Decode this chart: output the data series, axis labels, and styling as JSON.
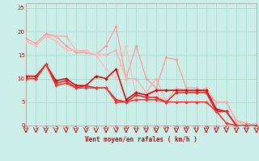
{
  "background_color": "#cceee8",
  "grid_color": "#aaddcc",
  "xlabel": "Vent moyen/en rafales ( km/h )",
  "xlim": [
    0,
    23
  ],
  "ylim": [
    0,
    26
  ],
  "xticks": [
    0,
    1,
    2,
    3,
    4,
    5,
    6,
    7,
    8,
    9,
    10,
    11,
    12,
    13,
    14,
    15,
    16,
    17,
    18,
    19,
    20,
    21,
    22,
    23
  ],
  "yticks": [
    0,
    5,
    10,
    15,
    20,
    25
  ],
  "lines": [
    {
      "x": [
        0,
        1,
        2,
        3,
        4,
        5,
        6,
        7,
        8,
        9,
        10,
        11,
        12,
        13,
        14,
        15,
        16,
        17,
        18,
        19,
        20,
        21,
        22,
        23
      ],
      "y": [
        18.5,
        17.5,
        19.5,
        19,
        17,
        15.5,
        15.5,
        15,
        17,
        21,
        10,
        17,
        10,
        8,
        14.5,
        14,
        8,
        8,
        7,
        5,
        5,
        1,
        0.5,
        0
      ],
      "color": "#ff9999",
      "lw": 0.9,
      "marker": "D",
      "markersize": 2.2
    },
    {
      "x": [
        0,
        1,
        2,
        3,
        4,
        5,
        6,
        7,
        8,
        9,
        10,
        11,
        12,
        13,
        14,
        15,
        16,
        17,
        18,
        19,
        20,
        21,
        22,
        23
      ],
      "y": [
        18,
        17,
        19,
        19,
        19,
        16,
        15.5,
        15,
        15,
        16,
        10,
        10,
        7,
        10,
        5,
        8,
        7.5,
        7,
        8,
        5,
        5,
        1,
        0,
        0.5
      ],
      "color": "#ffaaaa",
      "lw": 0.9,
      "marker": "D",
      "markersize": 2.2
    },
    {
      "x": [
        0,
        1,
        2,
        3,
        4,
        5,
        6,
        7,
        8,
        9,
        10,
        11,
        12,
        13,
        14,
        15,
        16,
        17,
        18,
        19,
        20,
        21,
        22,
        23
      ],
      "y": [
        18,
        17,
        19,
        18,
        16,
        16,
        16,
        15,
        12,
        10,
        17,
        6,
        7,
        7,
        5,
        5,
        5,
        5,
        5,
        3.5,
        0.5,
        0,
        0,
        0
      ],
      "color": "#ffbbbb",
      "lw": 0.9,
      "marker": "D",
      "markersize": 2.2
    },
    {
      "x": [
        0,
        1,
        2,
        3,
        4,
        5,
        6,
        7,
        8,
        9,
        10,
        11,
        12,
        13,
        14,
        15,
        16,
        17,
        18,
        19,
        20,
        21,
        22,
        23
      ],
      "y": [
        10.5,
        10.5,
        13,
        9.5,
        10,
        8.5,
        8.5,
        10.5,
        10,
        12,
        5.5,
        7,
        6.5,
        7.5,
        7.5,
        7.5,
        7.5,
        7.5,
        7.5,
        3.5,
        3,
        0,
        0,
        0
      ],
      "color": "#cc0000",
      "lw": 1.1,
      "marker": "D",
      "markersize": 2.2
    },
    {
      "x": [
        0,
        1,
        2,
        3,
        4,
        5,
        6,
        7,
        8,
        9,
        10,
        11,
        12,
        13,
        14,
        15,
        16,
        17,
        18,
        19,
        20,
        21,
        22,
        23
      ],
      "y": [
        10,
        10,
        13,
        9,
        9.5,
        8,
        8.5,
        8,
        8,
        5.5,
        5,
        6.5,
        6,
        6,
        5,
        7,
        7,
        7,
        7,
        3,
        3,
        0,
        0,
        0
      ],
      "color": "#dd2222",
      "lw": 1.1,
      "marker": "D",
      "markersize": 2.2
    },
    {
      "x": [
        0,
        1,
        2,
        3,
        4,
        5,
        6,
        7,
        8,
        9,
        10,
        11,
        12,
        13,
        14,
        15,
        16,
        17,
        18,
        19,
        20,
        21,
        22,
        23
      ],
      "y": [
        10,
        10,
        13,
        8.5,
        9,
        8,
        8,
        8,
        8,
        5,
        5,
        5.5,
        5.5,
        5.5,
        5,
        5,
        5,
        5,
        5,
        3,
        0.5,
        0,
        0,
        0
      ],
      "color": "#ee3333",
      "lw": 1.1,
      "marker": "D",
      "markersize": 2.2
    }
  ]
}
